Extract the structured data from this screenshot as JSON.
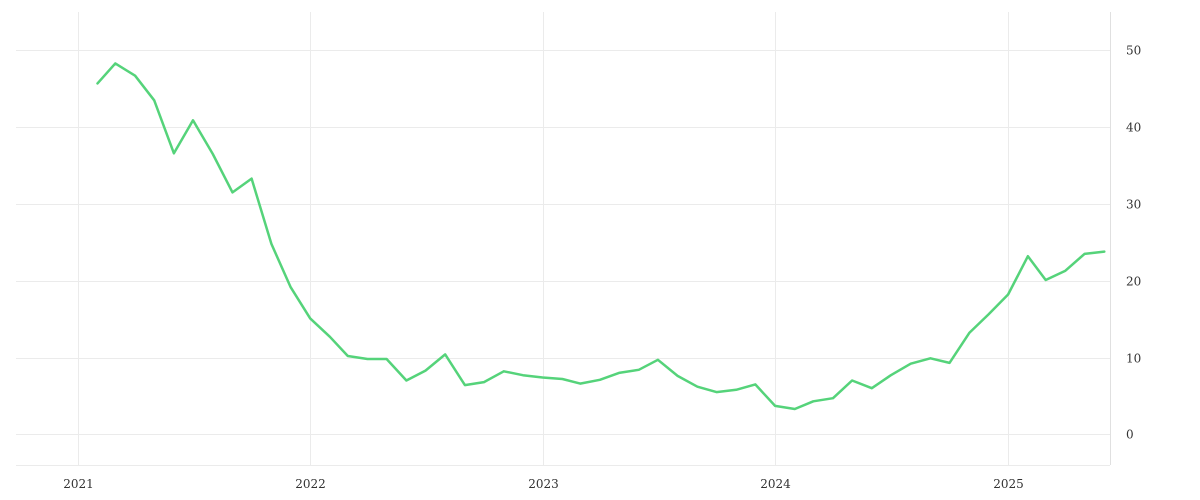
{
  "chart_data": {
    "type": "line",
    "title": "",
    "xlabel": "",
    "ylabel": "",
    "x_axis": {
      "type": "date",
      "range": [
        "2020-09-26",
        "2025-06-10"
      ],
      "tick_labels": [
        "2021",
        "2022",
        "2023",
        "2024",
        "2025"
      ],
      "tick_dates": [
        "2021-01-01",
        "2022-01-01",
        "2023-01-01",
        "2024-01-01",
        "2025-01-01"
      ]
    },
    "y_axis": {
      "position": "right",
      "range": [
        -4,
        55
      ],
      "ticks": [
        0,
        10,
        20,
        30,
        40,
        50
      ]
    },
    "grid": true,
    "legend": "none",
    "series": [
      {
        "color": "#55d37a",
        "x": [
          "2021-02-01",
          "2021-03-01",
          "2021-04-01",
          "2021-05-01",
          "2021-06-01",
          "2021-07-01",
          "2021-08-01",
          "2021-09-01",
          "2021-10-01",
          "2021-11-01",
          "2021-12-01",
          "2022-01-01",
          "2022-02-01",
          "2022-03-01",
          "2022-04-01",
          "2022-05-01",
          "2022-06-01",
          "2022-07-01",
          "2022-08-01",
          "2022-09-01",
          "2022-10-01",
          "2022-11-01",
          "2022-12-01",
          "2023-01-01",
          "2023-02-01",
          "2023-03-01",
          "2023-04-01",
          "2023-05-01",
          "2023-06-01",
          "2023-07-01",
          "2023-08-01",
          "2023-09-01",
          "2023-10-01",
          "2023-11-01",
          "2023-12-01",
          "2024-01-01",
          "2024-02-01",
          "2024-03-01",
          "2024-04-01",
          "2024-05-01",
          "2024-06-01",
          "2024-07-01",
          "2024-08-01",
          "2024-09-01",
          "2024-10-01",
          "2024-11-01",
          "2024-12-01",
          "2025-01-01",
          "2025-02-01",
          "2025-03-01",
          "2025-04-01",
          "2025-05-01",
          "2025-06-01"
        ],
        "y": [
          45.7,
          48.3,
          46.7,
          43.5,
          36.6,
          40.9,
          36.5,
          31.5,
          33.3,
          24.8,
          19.2,
          15.1,
          12.7,
          10.2,
          9.8,
          9.8,
          7.0,
          8.3,
          10.4,
          6.4,
          6.8,
          8.2,
          7.7,
          7.4,
          7.2,
          6.6,
          7.1,
          8.0,
          8.4,
          9.7,
          7.6,
          6.2,
          5.5,
          5.8,
          6.5,
          3.7,
          3.3,
          4.3,
          4.7,
          7.0,
          6.0,
          7.7,
          9.2,
          9.9,
          9.3,
          13.2,
          15.6,
          18.2,
          23.2,
          20.1,
          21.3,
          23.5,
          23.8
        ]
      }
    ]
  }
}
